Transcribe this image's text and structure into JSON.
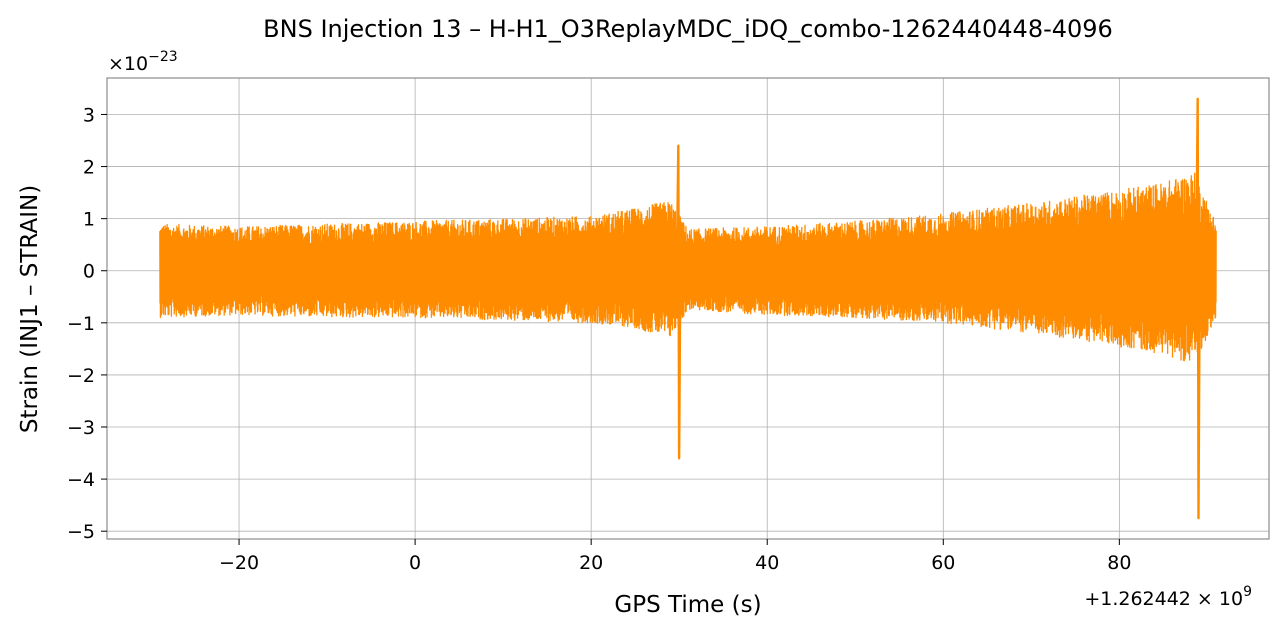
{
  "chart_data": {
    "type": "line",
    "title": "BNS Injection 13 – H-H1_O3ReplayMDC_iDQ_combo-1262440448-4096",
    "xlabel": "GPS Time (s)",
    "ylabel": "Strain (INJ1 – STRAIN)",
    "x_offset_label": "+1.262442 × 10",
    "x_offset_exp": "9",
    "y_scale_label": "×10",
    "y_scale_exp": "−23",
    "xlim": [
      -35,
      97
    ],
    "ylim": [
      -5.15,
      3.7
    ],
    "x_ticks": [
      -20,
      0,
      20,
      40,
      60,
      80
    ],
    "x_tick_labels": [
      "−20",
      "0",
      "20",
      "40",
      "60",
      "80"
    ],
    "y_ticks": [
      -5,
      -4,
      -3,
      -2,
      -1,
      0,
      1,
      2,
      3
    ],
    "y_tick_labels": [
      "−5",
      "−4",
      "−3",
      "−2",
      "−1",
      "0",
      "1",
      "2",
      "3"
    ],
    "grid": true,
    "series": [
      {
        "color": "#ff8c00",
        "x_range": [
          -29,
          91
        ],
        "envelope": [
          {
            "x": -29,
            "lo": -0.9,
            "hi": 0.9
          },
          {
            "x": -20,
            "lo": -0.85,
            "hi": 0.85
          },
          {
            "x": -10,
            "lo": -0.9,
            "hi": 0.9
          },
          {
            "x": 0,
            "lo": -0.9,
            "hi": 0.95
          },
          {
            "x": 10,
            "lo": -0.95,
            "hi": 1.0
          },
          {
            "x": 20,
            "lo": -1.0,
            "hi": 1.05
          },
          {
            "x": 25,
            "lo": -1.1,
            "hi": 1.2
          },
          {
            "x": 29,
            "lo": -1.3,
            "hi": 1.35
          },
          {
            "x": 31,
            "lo": -0.75,
            "hi": 0.8
          },
          {
            "x": 40,
            "lo": -0.85,
            "hi": 0.85
          },
          {
            "x": 50,
            "lo": -0.9,
            "hi": 0.95
          },
          {
            "x": 60,
            "lo": -1.0,
            "hi": 1.1
          },
          {
            "x": 70,
            "lo": -1.2,
            "hi": 1.3
          },
          {
            "x": 78,
            "lo": -1.4,
            "hi": 1.5
          },
          {
            "x": 85,
            "lo": -1.6,
            "hi": 1.7
          },
          {
            "x": 88.5,
            "lo": -1.8,
            "hi": 1.9
          },
          {
            "x": 91,
            "lo": -0.9,
            "hi": 0.95
          }
        ],
        "spikes": [
          {
            "x": 29.9,
            "max": 2.4,
            "min": -3.6
          },
          {
            "x": 88.9,
            "max": 3.3,
            "min": -4.75
          }
        ]
      }
    ]
  }
}
